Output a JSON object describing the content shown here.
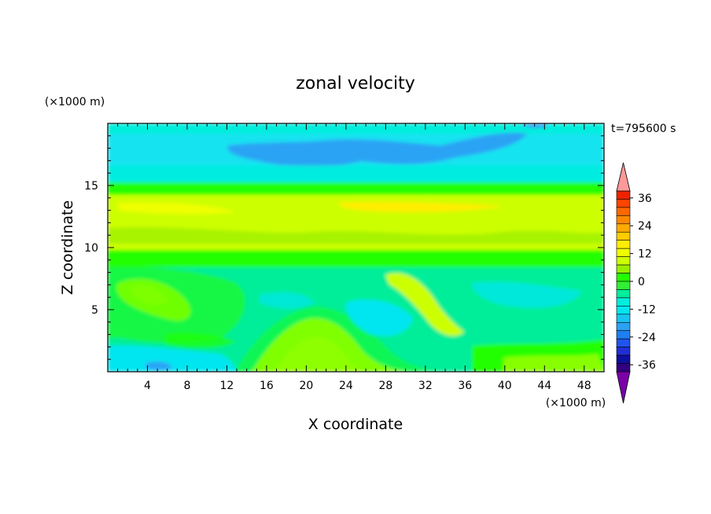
{
  "chart_data": {
    "type": "heatmap",
    "title": "zonal velocity",
    "xlabel": "X coordinate",
    "ylabel": "Z coordinate",
    "x_unit": "(×1000 m)",
    "y_unit": "(×1000 m)",
    "time_label": "t=795600 s",
    "xlim": [
      0,
      50
    ],
    "ylim": [
      0,
      20
    ],
    "x_ticks": [
      4,
      8,
      12,
      16,
      20,
      24,
      28,
      32,
      36,
      40,
      44,
      48
    ],
    "y_ticks": [
      5,
      10,
      15
    ],
    "colorbar": {
      "levels": [
        -42,
        -39,
        -36,
        -33,
        -30,
        -27,
        -24,
        -21,
        -18,
        -15,
        -12,
        -9,
        -6,
        -3,
        0,
        3,
        6,
        9,
        12,
        15,
        18,
        21,
        24,
        27,
        30,
        33,
        36,
        39,
        42
      ],
      "tick_labels": [
        "36",
        "24",
        "12",
        "0",
        "-12",
        "-24",
        "-36"
      ],
      "tick_values": [
        36,
        24,
        12,
        0,
        -12,
        -24,
        -36
      ],
      "colors": [
        "#7a00a8",
        "#33007f",
        "#0f0fa0",
        "#1f2fd6",
        "#1f55ee",
        "#1f7ff0",
        "#2aa3f5",
        "#19c3f0",
        "#00e6f0",
        "#00eedd",
        "#00ee99",
        "#33ee33",
        "#22ff00",
        "#99ee00",
        "#ccff00",
        "#eeff00",
        "#ffee00",
        "#ffcc00",
        "#ffaa00",
        "#ff8800",
        "#ff6600",
        "#ff4400",
        "#ee2200",
        "#ff9999"
      ],
      "extend": "both"
    },
    "field_description_rows_z": [
      {
        "z": 19.5,
        "u": -9
      },
      {
        "z": 17.0,
        "u": -16
      },
      {
        "z": 15.5,
        "u": -10
      },
      {
        "z": 14.5,
        "u": 0
      },
      {
        "z": 13.0,
        "u": 8
      },
      {
        "z": 11.0,
        "u": 7
      },
      {
        "z": 9.5,
        "u": 1
      },
      {
        "z": 7.0,
        "u": -5
      },
      {
        "z": 5.0,
        "u": -3
      },
      {
        "z": 2.5,
        "u": 2
      },
      {
        "z": 0.5,
        "u": -8
      }
    ]
  }
}
